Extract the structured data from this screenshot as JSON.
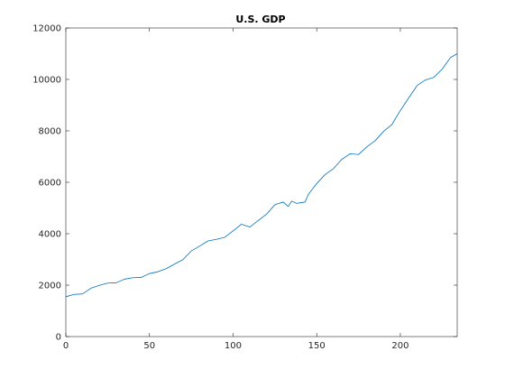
{
  "chart_data": {
    "type": "line",
    "title": "U.S. GDP",
    "xlabel": "",
    "ylabel": "",
    "xlim": [
      0,
      234
    ],
    "ylim": [
      0,
      12000
    ],
    "x_ticks": [
      0,
      50,
      100,
      150,
      200
    ],
    "y_ticks": [
      0,
      2000,
      4000,
      6000,
      8000,
      10000,
      12000
    ],
    "grid": false,
    "legend": "none",
    "series_color": "#0072BD",
    "series": [
      {
        "name": "",
        "x": [
          0,
          5,
          10,
          15,
          20,
          25,
          30,
          35,
          40,
          45,
          50,
          55,
          60,
          65,
          70,
          75,
          80,
          85,
          90,
          95,
          100,
          105,
          110,
          115,
          120,
          125,
          130,
          133,
          135,
          138,
          140,
          143,
          145,
          150,
          155,
          160,
          165,
          170,
          175,
          180,
          185,
          190,
          195,
          200,
          205,
          210,
          215,
          220,
          225,
          230,
          234
        ],
        "y": [
          1550,
          1640,
          1660,
          1880,
          1990,
          2080,
          2090,
          2230,
          2290,
          2300,
          2450,
          2520,
          2640,
          2820,
          2990,
          3330,
          3520,
          3720,
          3780,
          3860,
          4110,
          4370,
          4260,
          4510,
          4760,
          5130,
          5230,
          5060,
          5270,
          5180,
          5200,
          5230,
          5530,
          5950,
          6300,
          6530,
          6890,
          7110,
          7080,
          7380,
          7620,
          7980,
          8250,
          8790,
          9280,
          9760,
          9980,
          10080,
          10400,
          10850,
          11000
        ]
      }
    ]
  }
}
